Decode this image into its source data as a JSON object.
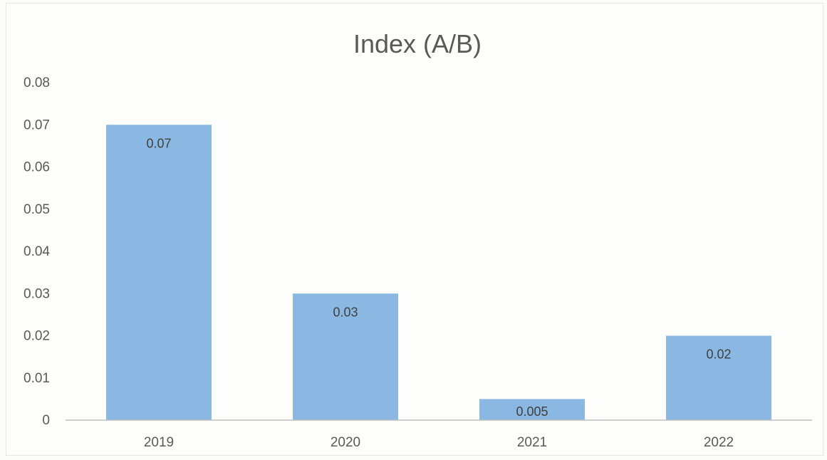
{
  "chart_data": {
    "type": "bar",
    "title": "Index (A/B)",
    "xlabel": "",
    "ylabel": "",
    "categories": [
      "2019",
      "2020",
      "2021",
      "2022"
    ],
    "values": [
      0.07,
      0.03,
      0.005,
      0.02
    ],
    "data_labels": [
      "0.07",
      "0.03",
      "0.005",
      "0.02"
    ],
    "ylim": [
      0,
      0.08
    ],
    "yticks": [
      "0",
      "0.01",
      "0.02",
      "0.03",
      "0.04",
      "0.05",
      "0.06",
      "0.07",
      "0.08"
    ],
    "grid": false,
    "legend": "none",
    "bar_color": "#8ab8e2"
  }
}
